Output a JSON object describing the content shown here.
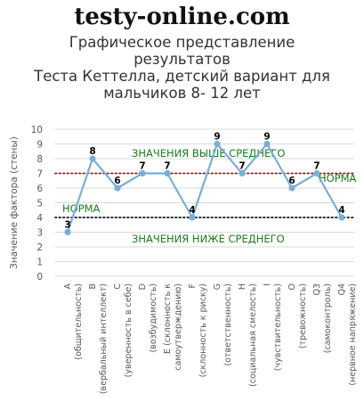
{
  "site": "testy-online.com",
  "title_lines": [
    "Графическое представление",
    "результатов",
    "Теста Кеттелла,  детский вариант для",
    "мальчиков 8- 12 лет"
  ],
  "chart_data": {
    "type": "line",
    "title": "Графическое представление результатов Теста Кеттелла,  детский вариант для мальчиков 8- 12 лет",
    "ylabel": "Значение фактора (стены)",
    "xlabel": "",
    "ylim": [
      0,
      10
    ],
    "yticks": [
      "0",
      "1",
      "2",
      "3",
      "4",
      "5",
      "6",
      "7",
      "8",
      "9",
      "10"
    ],
    "grid": true,
    "categories": [
      "A (общительность)",
      "B (вербальный интеллект)",
      "C (уверенность в себе)",
      "D (возбудимость)",
      "E (склонность к самоутверждению)",
      "F (склонность к риску)",
      "G (ответственность)",
      "H (социальная смелость)",
      "I (чувствительность)",
      "O (тревожность)",
      "Q3 (самоконтроль)",
      "Q4 (нервное напряжение)"
    ],
    "x_labels": [
      "A",
      "(общительность)",
      "B",
      "(вербальный интеллект)",
      "C",
      "(уверенность в себе)",
      "D",
      "(возбудимость)",
      "E (склонность к",
      "самоутверждению)",
      "F",
      "(склонность к риску)",
      "G",
      "(ответственность)",
      "H",
      "(социальная смелость)",
      "I",
      "(чувствительность)",
      "O",
      "(тревожность)",
      "Q3",
      "(самоконтроль)",
      "Q4",
      "(нервное напряжение)"
    ],
    "values": [
      3,
      8,
      6,
      7,
      7,
      4,
      9,
      7,
      9,
      6,
      7,
      4
    ],
    "data_labels": [
      "3",
      "8",
      "6",
      "7",
      "7",
      "4",
      "9",
      "7",
      "9",
      "6",
      "7",
      "4"
    ],
    "reference_lines": [
      {
        "value": 7,
        "color": "#8b1a1a"
      },
      {
        "value": 4,
        "color": "#111111"
      }
    ],
    "annotations": [
      {
        "text": "ЗНАЧЕНИЯ ВЫШЕ СРЕДНЕГО"
      },
      {
        "text": "НОРМА"
      },
      {
        "text": "НОРМА"
      },
      {
        "text": "ЗНАЧЕНИЯ НИЖЕ СРЕДНЕГО"
      }
    ],
    "colors": {
      "line": "#7aaed6",
      "annotation": "#1e7a1e",
      "grid": "#d9d9d9",
      "axis_text": "#595959"
    }
  }
}
